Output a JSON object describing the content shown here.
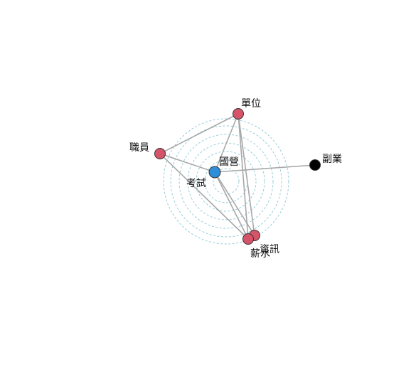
{
  "colors": {
    "peripheral": "#d65469",
    "center": "#2e8fd8",
    "isolated": "#000000",
    "edge": "#a8a8a8",
    "ring": "#8cc8d6"
  },
  "nodes": [
    {
      "id": "n_guoying",
      "label": "國營",
      "group": "center"
    },
    {
      "id": "n_kaoshi",
      "label": "考試",
      "group": "center-label"
    },
    {
      "id": "n_danwei",
      "label": "單位",
      "group": "peripheral"
    },
    {
      "id": "n_zhiyuan",
      "label": "職員",
      "group": "peripheral"
    },
    {
      "id": "n_fuye",
      "label": "副業",
      "group": "isolated"
    },
    {
      "id": "n_zixun",
      "label": "資訊",
      "group": "peripheral"
    },
    {
      "id": "n_xinshui",
      "label": "薪水",
      "group": "peripheral"
    }
  ],
  "edges": [
    {
      "from": "n_guoying",
      "to": "n_fuye"
    },
    {
      "from": "n_guoying",
      "to": "n_zhiyuan"
    },
    {
      "from": "n_guoying",
      "to": "n_zixun"
    },
    {
      "from": "n_guoying",
      "to": "n_xinshui"
    },
    {
      "from": "n_zhiyuan",
      "to": "n_danwei"
    },
    {
      "from": "n_zhiyuan",
      "to": "n_xinshui"
    },
    {
      "from": "n_danwei",
      "to": "n_guoying"
    },
    {
      "from": "n_danwei",
      "to": "n_zixun"
    },
    {
      "from": "n_danwei",
      "to": "n_xinshui"
    }
  ]
}
